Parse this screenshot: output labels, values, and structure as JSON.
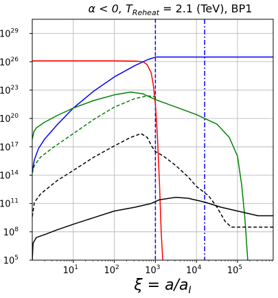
{
  "chart_data": {
    "type": "line",
    "title": {
      "parts": [
        {
          "text": "α < 0, T",
          "style": "italic-alpha"
        },
        {
          "text": "Reheat",
          "style": "sub"
        },
        {
          "text": " = 2.1 (TeV), BP1",
          "style": "normal"
        }
      ]
    },
    "xlabel": {
      "parts": [
        {
          "text": "ξ = a/a",
          "style": "italic"
        },
        {
          "text": "I",
          "style": "sub"
        }
      ]
    },
    "ylabel": "",
    "xscale": "log",
    "yscale": "log",
    "xlim_log10": [
      0,
      5.87
    ],
    "ylim_log10": [
      5,
      30.5
    ],
    "xticks": [
      {
        "base": "10",
        "exp": "1",
        "log": 1
      },
      {
        "base": "10",
        "exp": "2",
        "log": 2
      },
      {
        "base": "10",
        "exp": "3",
        "log": 3
      },
      {
        "base": "10",
        "exp": "4",
        "log": 4
      },
      {
        "base": "10",
        "exp": "5",
        "log": 5
      }
    ],
    "yticks": [
      {
        "base": "10",
        "exp": "5",
        "log": 5
      },
      {
        "base": "10",
        "exp": "8",
        "log": 8
      },
      {
        "base": "10",
        "exp": "11",
        "log": 11
      },
      {
        "base": "10",
        "exp": "14",
        "log": 14
      },
      {
        "base": "10",
        "exp": "17",
        "log": 17
      },
      {
        "base": "10",
        "exp": "20",
        "log": 20
      },
      {
        "base": "10",
        "exp": "23",
        "log": 23
      },
      {
        "base": "10",
        "exp": "26",
        "log": 26
      },
      {
        "base": "10",
        "exp": "29",
        "log": 29
      }
    ],
    "grid": true,
    "legend": "none",
    "vlines": [
      {
        "x_log10": 3.0,
        "color": "#0000ff",
        "dash": "dashed"
      },
      {
        "x_log10": 4.2,
        "color": "#0000ff",
        "dash": "dashdot"
      }
    ],
    "series": [
      {
        "color": "#ff0000",
        "dash": "solid",
        "points": [
          [
            0,
            26.1
          ],
          [
            1,
            26.1
          ],
          [
            2,
            26.1
          ],
          [
            2.5,
            26.08
          ],
          [
            2.7,
            26.0
          ],
          [
            2.8,
            25.7
          ],
          [
            2.9,
            24.8
          ],
          [
            2.95,
            23.5
          ],
          [
            3.0,
            21.5
          ],
          [
            3.05,
            18.0
          ],
          [
            3.1,
            13.0
          ],
          [
            3.14,
            8.0
          ],
          [
            3.18,
            5.0
          ]
        ]
      },
      {
        "color": "#0000ff",
        "dash": "solid",
        "points": [
          [
            0,
            14.3
          ],
          [
            0.05,
            15.6
          ],
          [
            0.15,
            16.8
          ],
          [
            0.3,
            17.8
          ],
          [
            0.6,
            19.3
          ],
          [
            1.0,
            21.1
          ],
          [
            1.5,
            22.9
          ],
          [
            2.0,
            24.4
          ],
          [
            2.5,
            25.6
          ],
          [
            2.8,
            26.2
          ],
          [
            3.0,
            26.5
          ],
          [
            3.05,
            26.5
          ],
          [
            5.87,
            26.5
          ]
        ]
      },
      {
        "color": "#008000",
        "dash": "solid",
        "points": [
          [
            0,
            17.8
          ],
          [
            0.04,
            18.6
          ],
          [
            0.1,
            19.0
          ],
          [
            0.3,
            19.6
          ],
          [
            0.6,
            20.3
          ],
          [
            1.0,
            21.1
          ],
          [
            1.5,
            21.9
          ],
          [
            2.0,
            22.5
          ],
          [
            2.4,
            22.8
          ],
          [
            2.7,
            22.6
          ],
          [
            3.0,
            22.0
          ],
          [
            3.5,
            21.2
          ],
          [
            4.0,
            20.4
          ],
          [
            4.5,
            19.4
          ],
          [
            4.8,
            18.0
          ],
          [
            5.0,
            16.0
          ],
          [
            5.1,
            13.0
          ],
          [
            5.18,
            9.5
          ],
          [
            5.25,
            5.0
          ]
        ]
      },
      {
        "color": "#008000",
        "dash": "dashed",
        "points": [
          [
            0,
            14.2
          ],
          [
            0.05,
            15.0
          ],
          [
            0.2,
            15.9
          ],
          [
            0.5,
            16.9
          ],
          [
            1.0,
            18.4
          ],
          [
            1.5,
            19.9
          ],
          [
            2.0,
            21.2
          ],
          [
            2.5,
            22.1
          ],
          [
            2.8,
            22.4
          ],
          [
            3.0,
            22.3
          ]
        ]
      },
      {
        "color": "#000000",
        "dash": "dashed",
        "points": [
          [
            0,
            9.6
          ],
          [
            0.05,
            11.1
          ],
          [
            0.2,
            12.0
          ],
          [
            0.6,
            13.4
          ],
          [
            1.0,
            14.5
          ],
          [
            1.5,
            15.9
          ],
          [
            2.0,
            17.1
          ],
          [
            2.4,
            18.0
          ],
          [
            2.65,
            18.4
          ],
          [
            2.8,
            18.0
          ],
          [
            2.92,
            17.0
          ],
          [
            3.0,
            16.5
          ],
          [
            3.2,
            16.0
          ],
          [
            3.5,
            15.0
          ],
          [
            3.8,
            13.8
          ],
          [
            4.0,
            12.8
          ],
          [
            4.3,
            11.8
          ],
          [
            4.5,
            10.6
          ],
          [
            4.7,
            9.1
          ],
          [
            4.85,
            8.5
          ],
          [
            5.87,
            8.5
          ]
        ]
      },
      {
        "color": "#000000",
        "dash": "solid",
        "points": [
          [
            0,
            5.0
          ],
          [
            0.02,
            6.8
          ],
          [
            0.1,
            7.4
          ],
          [
            0.3,
            7.7
          ],
          [
            0.6,
            8.2
          ],
          [
            1.0,
            8.8
          ],
          [
            1.5,
            9.5
          ],
          [
            2.0,
            10.2
          ],
          [
            2.5,
            10.6
          ],
          [
            2.9,
            11.0
          ],
          [
            3.1,
            11.4
          ],
          [
            3.5,
            11.65
          ],
          [
            3.8,
            11.55
          ],
          [
            4.2,
            11.15
          ],
          [
            4.6,
            10.6
          ],
          [
            5.0,
            10.2
          ],
          [
            5.5,
            9.7
          ],
          [
            5.87,
            9.7
          ]
        ]
      }
    ]
  }
}
